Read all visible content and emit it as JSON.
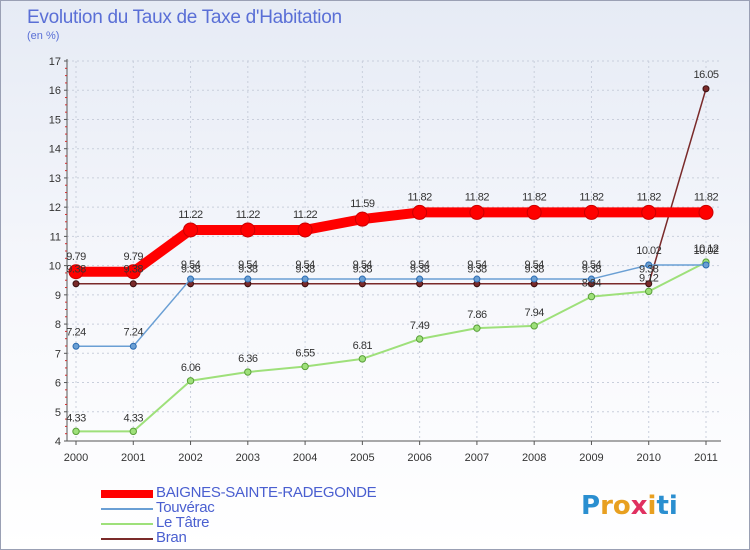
{
  "chart_data": {
    "type": "line",
    "title": "Evolution du Taux de Taxe d'Habitation",
    "subtitle": "(en %)",
    "xlabel": "",
    "ylabel": "",
    "x": [
      "2000",
      "2001",
      "2002",
      "2003",
      "2004",
      "2005",
      "2006",
      "2007",
      "2008",
      "2009",
      "2010",
      "2011"
    ],
    "ylim": [
      4,
      17
    ],
    "yticks": [
      "4",
      "5",
      "6",
      "7",
      "8",
      "9",
      "10",
      "11",
      "12",
      "13",
      "14",
      "15",
      "16",
      "17"
    ],
    "legend_position": "bottom-left",
    "series": [
      {
        "name": "BAIGNES-SAINTE-RADEGONDE",
        "color": "#ff0000",
        "values": [
          9.79,
          9.79,
          11.22,
          11.22,
          11.22,
          11.59,
          11.82,
          11.82,
          11.82,
          11.82,
          11.82,
          11.82
        ],
        "labels": [
          "9.79",
          "9.79",
          "11.22",
          "11.22",
          "11.22",
          "11.59",
          "11.82",
          "11.82",
          "11.82",
          "11.82",
          "11.82",
          "11.82"
        ]
      },
      {
        "name": "Touvérac",
        "color": "#6a9fd4",
        "values": [
          7.24,
          7.24,
          9.54,
          9.54,
          9.54,
          9.54,
          9.54,
          9.54,
          9.54,
          9.54,
          10.02,
          10.02
        ],
        "labels": [
          "7.24",
          "7.24",
          "9.54",
          "9.54",
          "9.54",
          "9.54",
          "9.54",
          "9.54",
          "9.54",
          "9.54",
          "10.02",
          "10.02"
        ]
      },
      {
        "name": "Le Tâtre",
        "color": "#9ee07a",
        "values": [
          4.33,
          4.33,
          6.06,
          6.36,
          6.55,
          6.81,
          7.49,
          7.86,
          7.94,
          8.94,
          9.12,
          10.12
        ],
        "labels": [
          "4.33",
          "4.33",
          "6.06",
          "6.36",
          "6.55",
          "6.81",
          "7.49",
          "7.86",
          "7.94",
          "8.94",
          "9.12",
          "10.12"
        ]
      },
      {
        "name": "Bran",
        "color": "#7a2a2a",
        "values": [
          9.38,
          9.38,
          9.38,
          9.38,
          9.38,
          9.38,
          9.38,
          9.38,
          9.38,
          9.38,
          9.38,
          16.05
        ],
        "labels": [
          "9.38",
          "9.38",
          "9.38",
          "9.38",
          "9.38",
          "9.38",
          "9.38",
          "9.38",
          "9.38",
          "9.38",
          "9.38",
          "16.05"
        ]
      }
    ]
  },
  "logo": {
    "letters": [
      "P",
      "r",
      "o",
      "x",
      "i",
      "t",
      "i"
    ],
    "colors": [
      "#2a8fd0",
      "#e8a020",
      "#e8a020",
      "#e03060",
      "#e8a020",
      "#2a8fd0",
      "#2a8fd0"
    ]
  }
}
